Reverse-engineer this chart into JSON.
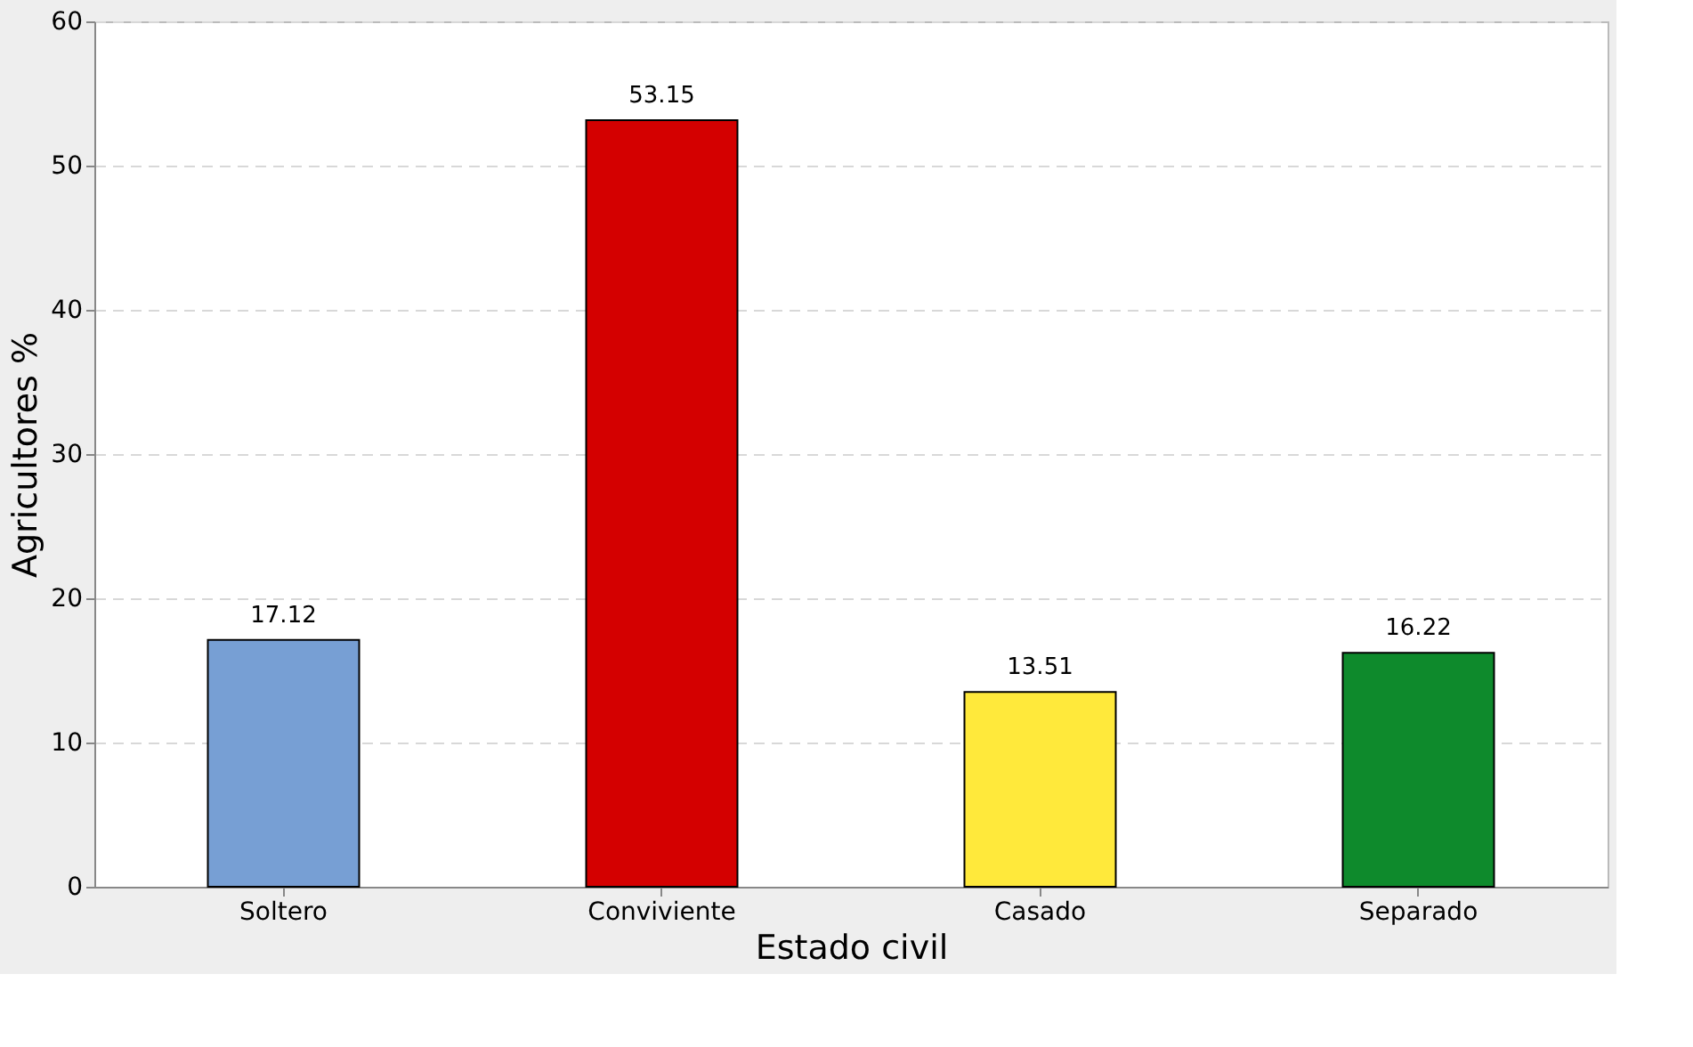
{
  "chart_data": {
    "type": "bar",
    "xlabel": "Estado civil",
    "ylabel": "Agricultores %",
    "categories": [
      "Soltero",
      "Conviviente",
      "Casado",
      "Separado"
    ],
    "values": [
      17.12,
      53.15,
      13.51,
      16.22
    ],
    "colors": [
      "#779fd4",
      "#d40000",
      "#ffe93b",
      "#0e8a2c"
    ],
    "ylim": [
      0,
      60
    ],
    "yticks": [
      0,
      10,
      20,
      30,
      40,
      50,
      60
    ],
    "grid": "y",
    "data_labels": true
  }
}
